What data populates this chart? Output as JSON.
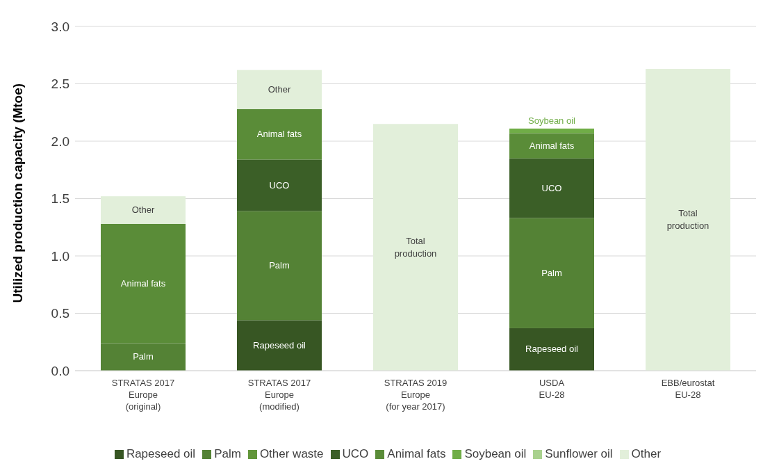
{
  "chart_data": {
    "type": "bar",
    "stacked": true,
    "ylabel": "Utilized production capacity (Mtoe)",
    "categories": [
      "STRATAS 2017\nEurope\n(original)",
      "STRATAS 2017\nEurope\n(modified)",
      "STRATAS 2019\nEurope\n(for year 2017)",
      "USDA\nEU-28",
      "EBB/eurostat\nEU-28"
    ],
    "series": [
      {
        "name": "Rapeseed oil",
        "color": "#375623",
        "values": [
          null,
          0.44,
          null,
          0.37,
          null
        ],
        "value_labels": [
          null,
          "Rapeseed oil",
          null,
          "Rapeseed oil",
          null
        ]
      },
      {
        "name": "Palm",
        "color": "#548235",
        "values": [
          0.24,
          0.95,
          null,
          0.96,
          null
        ],
        "value_labels": [
          "Palm",
          "Palm",
          null,
          "Palm",
          null
        ]
      },
      {
        "name": "Other waste",
        "color": "#62963a",
        "values": [
          null,
          null,
          null,
          null,
          null
        ]
      },
      {
        "name": "UCO",
        "color": "#3b5f27",
        "values": [
          null,
          0.45,
          null,
          0.52,
          null
        ],
        "value_labels": [
          null,
          "UCO",
          null,
          "UCO",
          null
        ]
      },
      {
        "name": "Animal fats",
        "color": "#5a8c38",
        "values": [
          1.04,
          0.44,
          null,
          0.22,
          null
        ],
        "value_labels": [
          "Animal fats",
          "Animal fats",
          null,
          "Animal fats",
          null
        ]
      },
      {
        "name": "Soybean oil",
        "color": "#70ad47",
        "values": [
          null,
          null,
          null,
          0.04,
          null
        ],
        "value_labels": [
          null,
          null,
          null,
          "Soybean oil",
          null
        ]
      },
      {
        "name": "Sunflower oil",
        "color": "#a9d18e",
        "values": [
          null,
          null,
          null,
          null,
          null
        ]
      },
      {
        "name": "Other",
        "color": "#e2efda",
        "values": [
          0.24,
          0.34,
          2.15,
          null,
          2.63
        ],
        "value_labels": [
          "Other",
          "Other",
          "Total production",
          null,
          "Total production"
        ]
      }
    ],
    "ylim": [
      0,
      3
    ],
    "yticks": [
      {
        "value": 0,
        "label": "0.0"
      },
      {
        "value": 0.5,
        "label": "0.5"
      },
      {
        "value": 1,
        "label": "1.0"
      },
      {
        "value": 1.5,
        "label": "1.5"
      },
      {
        "value": 2,
        "label": "2.0"
      },
      {
        "value": 2.5,
        "label": "2.5"
      },
      {
        "value": 3,
        "label": "3.0"
      }
    ],
    "grid": "y",
    "legend": "bottom"
  }
}
